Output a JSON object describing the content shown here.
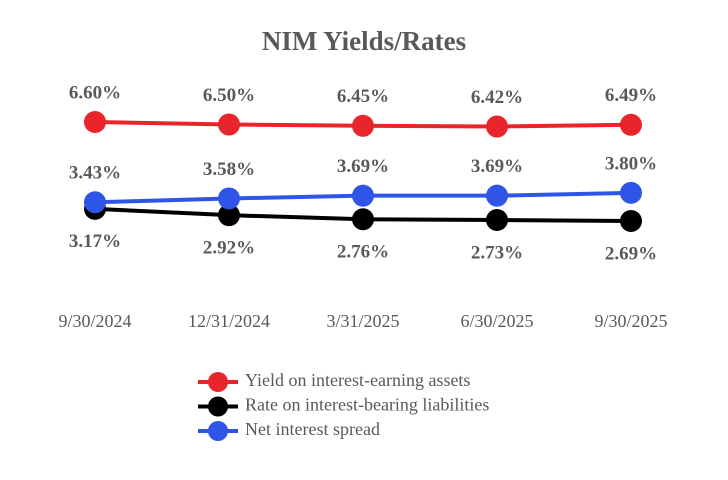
{
  "chart_data": {
    "type": "line",
    "title": "NIM Yields/Rates",
    "categories": [
      "9/30/2024",
      "12/31/2024",
      "3/31/2025",
      "6/30/2025",
      "9/30/2025"
    ],
    "series": [
      {
        "name": "Yield on interest-earning assets",
        "color": "#e8252a",
        "values": [
          6.6,
          6.5,
          6.45,
          6.42,
          6.49
        ],
        "value_labels": [
          "6.60%",
          "6.50%",
          "6.45%",
          "6.42%",
          "6.49%"
        ],
        "label_position": "above"
      },
      {
        "name": "Rate on interest-bearing liabilities",
        "color": "#000000",
        "values": [
          3.17,
          2.92,
          2.76,
          2.73,
          2.69
        ],
        "value_labels": [
          "3.17%",
          "2.92%",
          "2.76%",
          "2.73%",
          "2.69%"
        ],
        "label_position": "below"
      },
      {
        "name": "Net interest spread",
        "color": "#2f55e8",
        "values": [
          3.43,
          3.58,
          3.69,
          3.69,
          3.8
        ],
        "value_labels": [
          "3.43%",
          "3.58%",
          "3.69%",
          "3.69%",
          "3.80%"
        ],
        "label_position": "above"
      }
    ],
    "legend": "bottom"
  }
}
